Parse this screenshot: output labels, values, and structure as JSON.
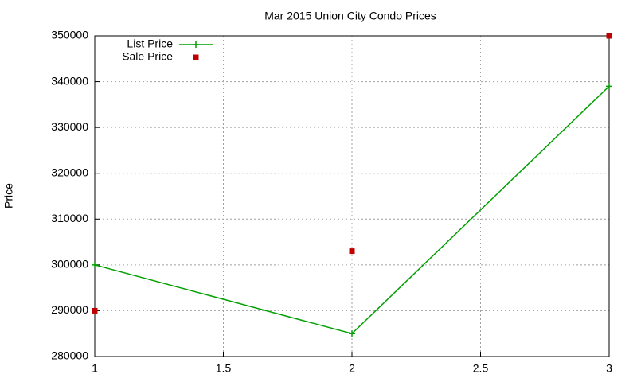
{
  "chart_data": {
    "type": "line",
    "title": "Mar 2015 Union City Condo Prices",
    "y_label": "Price",
    "x": [
      1,
      2,
      3
    ],
    "series": [
      {
        "name": "List Price",
        "color": "#00a000",
        "style": "linespoints",
        "values": [
          300000,
          285000,
          339000
        ]
      },
      {
        "name": "Sale Price",
        "color": "#c00000",
        "style": "points",
        "values": [
          290000,
          303000,
          350000
        ]
      }
    ],
    "xlim": [
      1,
      3
    ],
    "xticks": [
      1,
      1.5,
      2,
      2.5,
      3
    ],
    "ylim": [
      280000,
      350000
    ],
    "yticks": [
      280000,
      290000,
      300000,
      310000,
      320000,
      330000,
      340000,
      350000
    ],
    "grid": true,
    "legend": "top-left"
  }
}
